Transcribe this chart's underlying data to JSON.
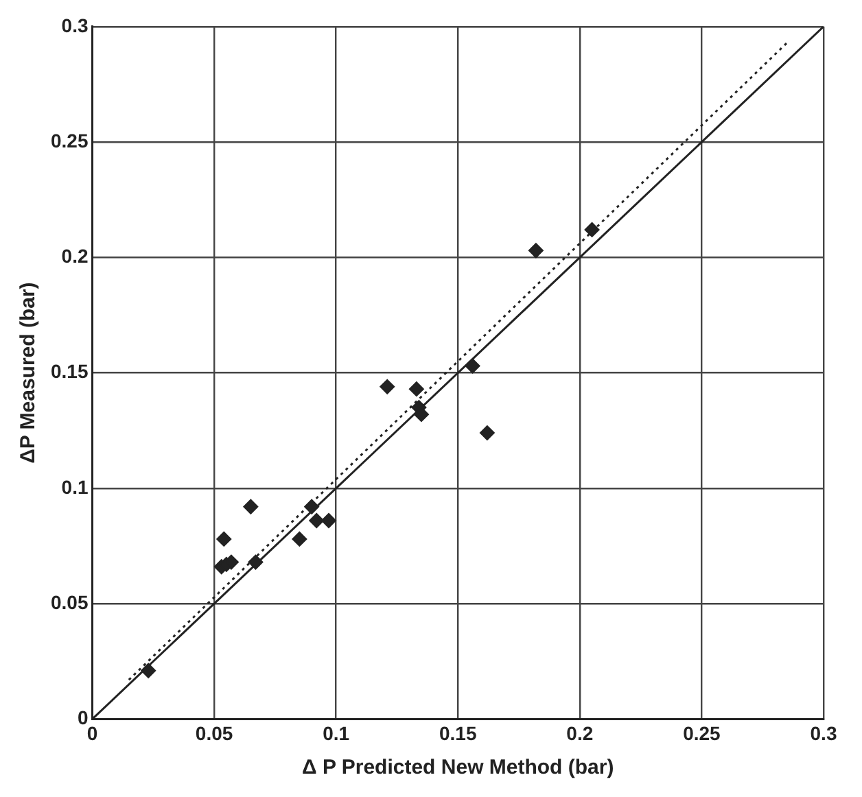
{
  "chart_data": {
    "type": "scatter",
    "xlabel": "Δ P Predicted New Method (bar)",
    "ylabel": "ΔP Measured (bar)",
    "xlim": [
      0,
      0.3
    ],
    "ylim": [
      0,
      0.3
    ],
    "xticks": [
      0,
      0.05,
      0.1,
      0.15,
      0.2,
      0.25,
      0.3
    ],
    "yticks": [
      0,
      0.05,
      0.1,
      0.15,
      0.2,
      0.25,
      0.3
    ],
    "grid": true,
    "legend": false,
    "series": [
      {
        "type": "scatter",
        "color": "#222222",
        "marker": "diamond",
        "x": [
          0.023,
          0.053,
          0.054,
          0.055,
          0.057,
          0.065,
          0.067,
          0.085,
          0.09,
          0.092,
          0.097,
          0.121,
          0.133,
          0.134,
          0.135,
          0.156,
          0.162,
          0.182,
          0.205
        ],
        "values": [
          0.021,
          0.066,
          0.078,
          0.067,
          0.068,
          0.092,
          0.068,
          0.078,
          0.092,
          0.086,
          0.086,
          0.144,
          0.143,
          0.135,
          0.132,
          0.153,
          0.124,
          0.203,
          0.212
        ]
      },
      {
        "type": "line",
        "color": "#222222",
        "marker": "none",
        "line_style": "solid",
        "x": [
          0,
          0.3
        ],
        "values": [
          0,
          0.3
        ]
      },
      {
        "type": "line",
        "color": "#222222",
        "marker": "none",
        "line_style": "dotted",
        "x": [
          0.015,
          0.285
        ],
        "values": [
          0.017,
          0.293
        ]
      }
    ]
  }
}
